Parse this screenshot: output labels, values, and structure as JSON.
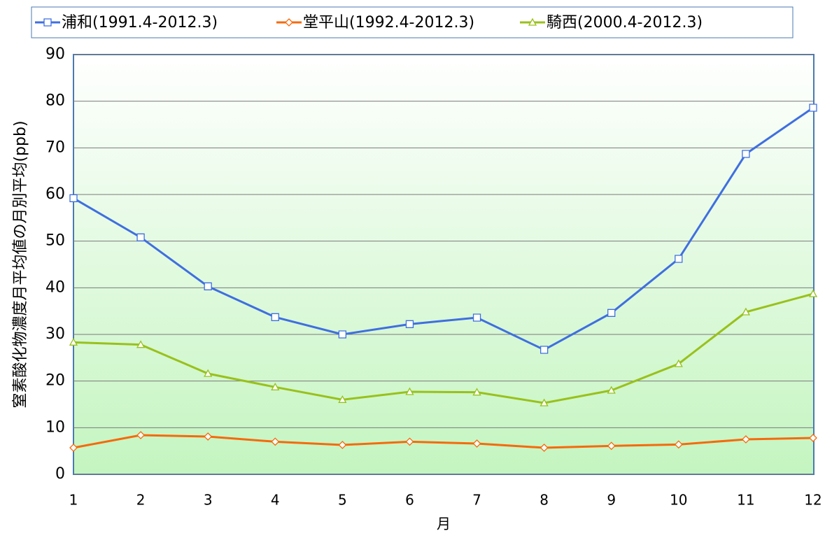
{
  "chart_data": {
    "type": "line",
    "x_label": "月",
    "y_label": "窒素酸化物濃度月平均値の月別平均(ppb)",
    "x": [
      1,
      2,
      3,
      4,
      5,
      6,
      7,
      8,
      9,
      10,
      11,
      12
    ],
    "xlim": [
      1,
      12
    ],
    "xticks": [
      1,
      2,
      3,
      4,
      5,
      6,
      7,
      8,
      9,
      10,
      11,
      12
    ],
    "ylim": [
      0,
      90
    ],
    "yticks": [
      0,
      10,
      20,
      30,
      40,
      50,
      60,
      70,
      80,
      90
    ],
    "grid": true,
    "legend": "top",
    "series": [
      {
        "name": "浦和(1991.4-2012.3)",
        "color": "#3f6fe0",
        "marker": "square",
        "values": [
          59.2,
          50.8,
          40.3,
          33.7,
          30.0,
          32.2,
          33.6,
          26.7,
          34.6,
          46.2,
          68.7,
          78.6
        ]
      },
      {
        "name": "堂平山(1992.4-2012.3)",
        "color": "#f56a0c",
        "marker": "diamond",
        "values": [
          5.7,
          8.4,
          8.1,
          7.0,
          6.3,
          7.0,
          6.6,
          5.7,
          6.1,
          6.4,
          7.5,
          7.8
        ]
      },
      {
        "name": "騎西(2000.4-2012.3)",
        "color": "#99c11b",
        "marker": "triangle",
        "values": [
          28.3,
          27.8,
          21.6,
          18.7,
          16.0,
          17.7,
          17.6,
          15.3,
          18.0,
          23.7,
          34.8,
          38.7
        ]
      }
    ]
  }
}
